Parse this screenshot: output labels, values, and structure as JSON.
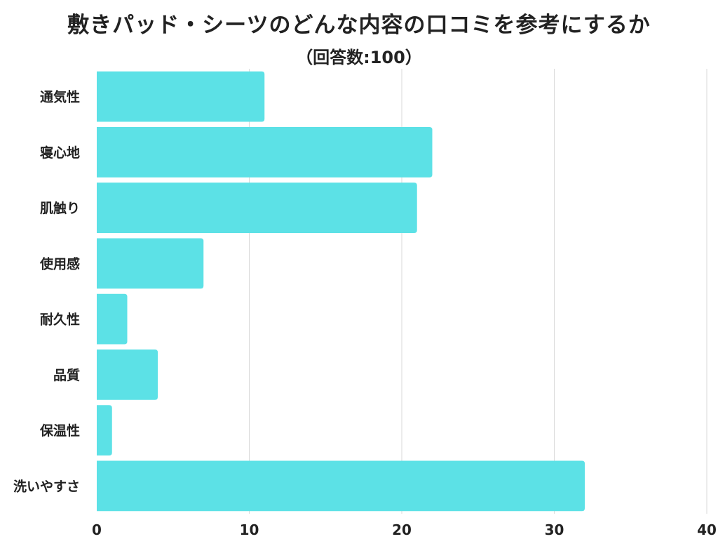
{
  "chart_data": {
    "type": "bar",
    "orientation": "horizontal",
    "title": "敷きパッド・シーツのどんな内容の口コミを参考にするか",
    "subtitle": "（回答数:100）",
    "categories": [
      "通気性",
      "寝心地",
      "肌触り",
      "使用感",
      "耐久性",
      "品質",
      "保温性",
      "洗いやすさ"
    ],
    "values": [
      11,
      22,
      21,
      7,
      2,
      4,
      1,
      32
    ],
    "xlim": [
      0,
      40
    ],
    "xticks": [
      0,
      10,
      20,
      30,
      40
    ],
    "xlabel": "",
    "ylabel": "",
    "grid": true,
    "legend": "none",
    "bar_color": "#5ce1e6",
    "grid_color": "#d9d9d9"
  }
}
